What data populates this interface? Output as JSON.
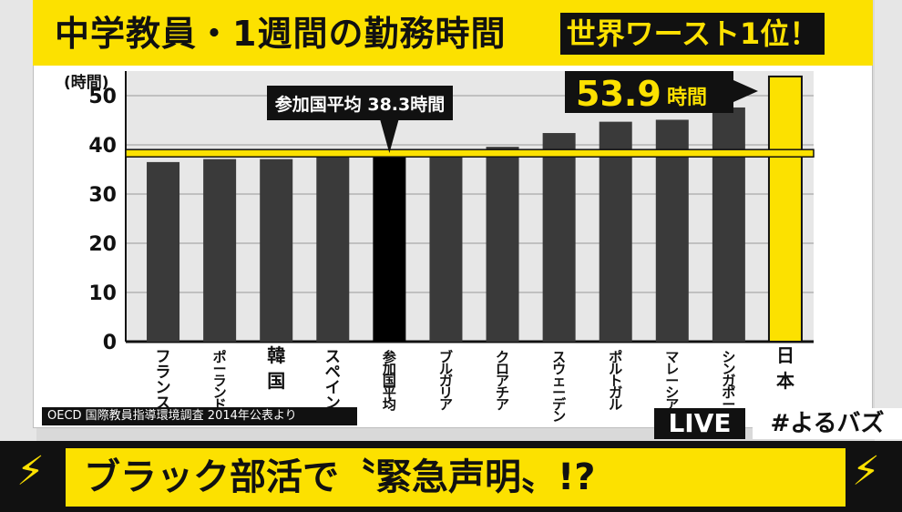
{
  "title": "中学教員・1週間の勤務時間",
  "badge": "世界ワースト1位！",
  "source": "OECD 国際教員指導環境調査 2014年公表より",
  "live": "LIVE",
  "hashtag": "#よるバズ",
  "headline": "ブラック部活で〝緊急声明〟!?",
  "icons": {
    "left": "lightning-icon",
    "right": "lightning-icon"
  },
  "colors": {
    "accent": "#fce100",
    "bar": "#3a3a3a",
    "average_bar": "#000000",
    "highlight_bar": "#fce100"
  },
  "chart_data": {
    "type": "bar",
    "title": "中学教員・1週間の勤務時間",
    "ylabel": "(時間)",
    "ylim": [
      0,
      55
    ],
    "yticks": [
      0,
      10,
      20,
      30,
      40,
      50
    ],
    "categories": [
      "フランス",
      "ポーランド",
      "韓国",
      "スペイン",
      "参加国平均",
      "ブルガリア",
      "クロアチア",
      "スウェーデン",
      "ポルトガル",
      "マレーシア",
      "シンガポール",
      "日本"
    ],
    "values": [
      36.5,
      37.1,
      37.1,
      37.9,
      38.3,
      39.0,
      39.6,
      42.4,
      44.7,
      45.1,
      47.6,
      53.9
    ],
    "average": {
      "label": "参加国平均 38.3時間",
      "value": 38.3
    },
    "highlight": {
      "label": "53.9",
      "unit": "時間",
      "index": 11
    }
  }
}
